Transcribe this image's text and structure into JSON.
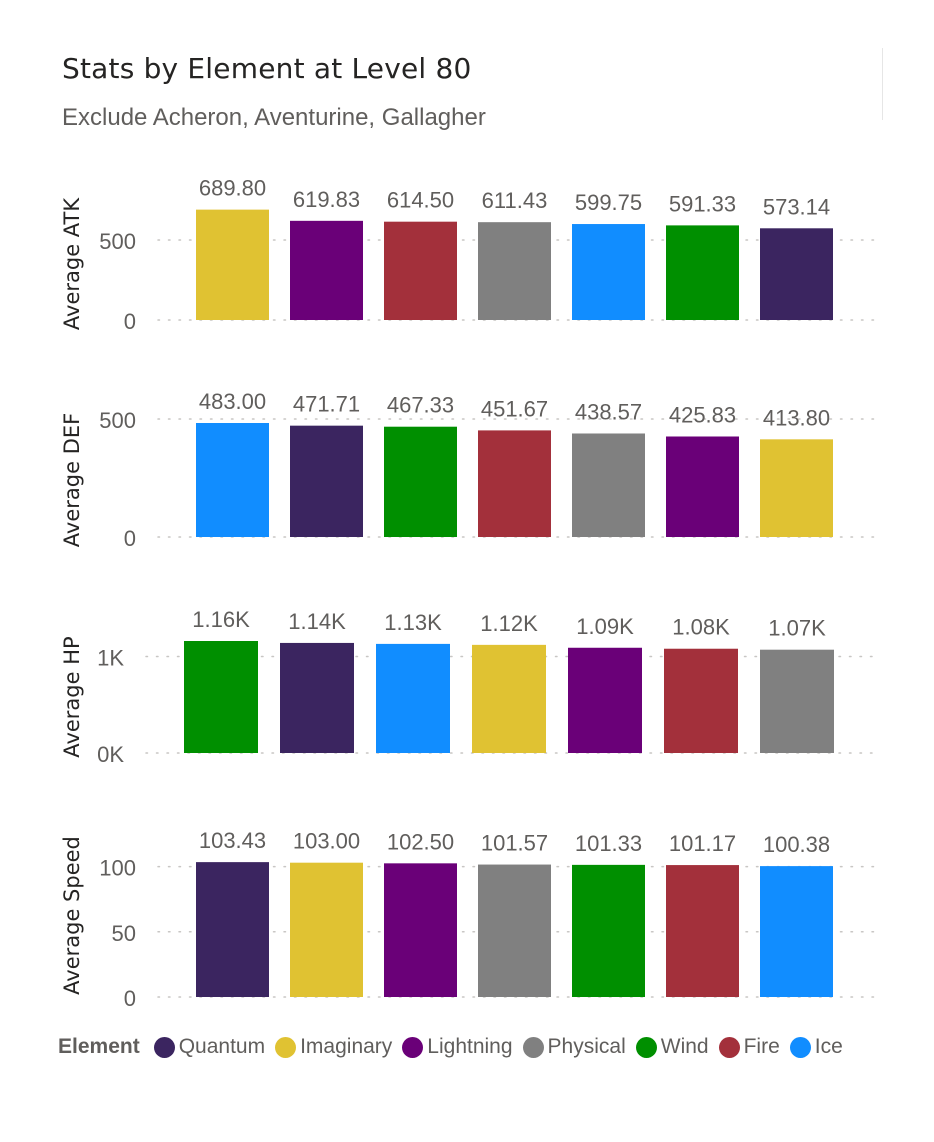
{
  "title": "Stats by Element at Level 80",
  "subtitle": "Exclude Acheron, Aventurine, Gallagher",
  "legend": {
    "title": "Element",
    "items": [
      {
        "name": "Quantum",
        "color": "#3b2560"
      },
      {
        "name": "Imaginary",
        "color": "#e0c232"
      },
      {
        "name": "Lightning",
        "color": "#6a0078"
      },
      {
        "name": "Physical",
        "color": "#808080"
      },
      {
        "name": "Wind",
        "color": "#008f00"
      },
      {
        "name": "Fire",
        "color": "#a3303b"
      },
      {
        "name": "Ice",
        "color": "#118dff"
      }
    ]
  },
  "chart_data": [
    {
      "type": "bar",
      "ylabel": "Average ATK",
      "ylim": [
        0,
        700
      ],
      "yticks": [
        {
          "value": 0,
          "label": "0"
        },
        {
          "value": 500,
          "label": "500"
        }
      ],
      "categories": [
        "Imaginary",
        "Lightning",
        "Fire",
        "Physical",
        "Ice",
        "Wind",
        "Quantum"
      ],
      "values": [
        689.8,
        619.83,
        614.5,
        611.43,
        599.75,
        591.33,
        573.14
      ],
      "labels": [
        "689.80",
        "619.83",
        "614.50",
        "611.43",
        "599.75",
        "591.33",
        "573.14"
      ]
    },
    {
      "type": "bar",
      "ylabel": "Average DEF",
      "ylim": [
        0,
        483
      ],
      "yticks": [
        {
          "value": 0,
          "label": "0"
        },
        {
          "value": 500,
          "label": "500"
        }
      ],
      "categories": [
        "Ice",
        "Quantum",
        "Wind",
        "Fire",
        "Physical",
        "Lightning",
        "Imaginary"
      ],
      "values": [
        483.0,
        471.71,
        467.33,
        451.67,
        438.57,
        425.83,
        413.8
      ],
      "labels": [
        "483.00",
        "471.71",
        "467.33",
        "451.67",
        "438.57",
        "425.83",
        "413.80"
      ]
    },
    {
      "type": "bar",
      "ylabel": "Average HP",
      "ylim": [
        0,
        1160
      ],
      "yticks": [
        {
          "value": 0,
          "label": "0K"
        },
        {
          "value": 1000,
          "label": "1K"
        }
      ],
      "categories": [
        "Wind",
        "Quantum",
        "Ice",
        "Imaginary",
        "Lightning",
        "Fire",
        "Physical"
      ],
      "values": [
        1160,
        1140,
        1130,
        1120,
        1090,
        1080,
        1070
      ],
      "labels": [
        "1.16K",
        "1.14K",
        "1.13K",
        "1.12K",
        "1.09K",
        "1.08K",
        "1.07K"
      ]
    },
    {
      "type": "bar",
      "ylabel": "Average Speed",
      "ylim": [
        0,
        125
      ],
      "yticks": [
        {
          "value": 0,
          "label": "0"
        },
        {
          "value": 50,
          "label": "50"
        },
        {
          "value": 100,
          "label": "100"
        }
      ],
      "categories": [
        "Quantum",
        "Imaginary",
        "Lightning",
        "Physical",
        "Wind",
        "Fire",
        "Ice"
      ],
      "values": [
        103.43,
        103.0,
        102.5,
        101.57,
        101.33,
        101.17,
        100.38
      ],
      "labels": [
        "103.43",
        "103.00",
        "102.50",
        "101.57",
        "101.33",
        "101.17",
        "100.38"
      ]
    }
  ]
}
